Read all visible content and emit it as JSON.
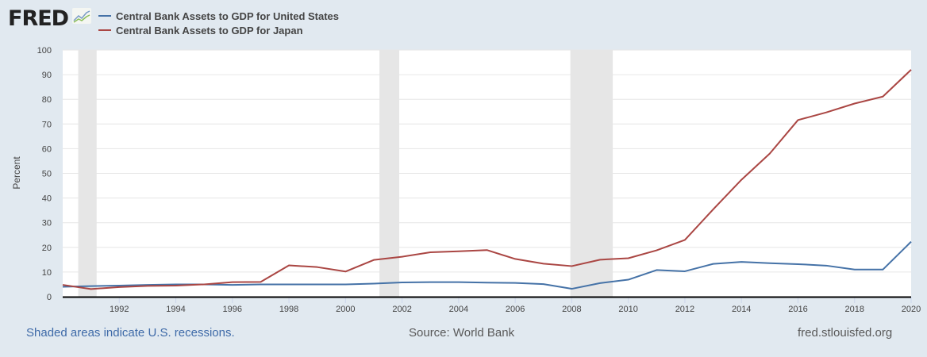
{
  "header": {
    "logo": "FRED"
  },
  "chart_data": {
    "type": "line",
    "title": "",
    "xlabel": "",
    "ylabel": "Percent",
    "ylim": [
      0,
      100
    ],
    "xlim": [
      1990,
      2020
    ],
    "yticks": [
      0,
      10,
      20,
      30,
      40,
      50,
      60,
      70,
      80,
      90,
      100
    ],
    "xticks": [
      1992,
      1994,
      1996,
      1998,
      2000,
      2002,
      2004,
      2006,
      2008,
      2010,
      2012,
      2014,
      2016,
      2018,
      2020
    ],
    "grid": true,
    "legend_position": "top-left",
    "x": [
      1990,
      1991,
      1992,
      1993,
      1994,
      1995,
      1996,
      1997,
      1998,
      1999,
      2000,
      2001,
      2002,
      2003,
      2004,
      2005,
      2006,
      2007,
      2008,
      2009,
      2010,
      2011,
      2012,
      2013,
      2014,
      2015,
      2016,
      2017,
      2018,
      2019,
      2020
    ],
    "series": [
      {
        "name": "Central Bank Assets to GDP for United States",
        "color": "#4572a7",
        "values": [
          4.0,
          4.3,
          4.5,
          4.8,
          5.0,
          5.0,
          4.8,
          5.0,
          5.0,
          5.0,
          5.0,
          5.3,
          5.8,
          5.9,
          5.9,
          5.7,
          5.6,
          5.1,
          3.2,
          5.5,
          6.9,
          10.8,
          10.3,
          13.3,
          14.1,
          13.6,
          13.2,
          12.6,
          11.0,
          11.0,
          22.3
        ]
      },
      {
        "name": "Central Bank Assets to GDP for Japan",
        "color": "#aa4643",
        "values": [
          4.8,
          3.1,
          3.9,
          4.4,
          4.5,
          5.0,
          5.9,
          6.0,
          12.7,
          12.0,
          10.2,
          14.9,
          16.2,
          18.0,
          18.4,
          18.9,
          15.3,
          13.4,
          12.4,
          15.0,
          15.6,
          18.8,
          23.0,
          35.4,
          47.4,
          58.0,
          71.6,
          74.7,
          78.3,
          81.1,
          92.0
        ]
      }
    ],
    "recessions": [
      [
        1990.55,
        1991.2
      ],
      [
        2001.2,
        2001.9
      ],
      [
        2007.95,
        2009.45
      ]
    ]
  },
  "footer": {
    "note": "Shaded areas indicate U.S. recessions.",
    "source": "Source: World Bank",
    "site": "fred.stlouisfed.org"
  }
}
